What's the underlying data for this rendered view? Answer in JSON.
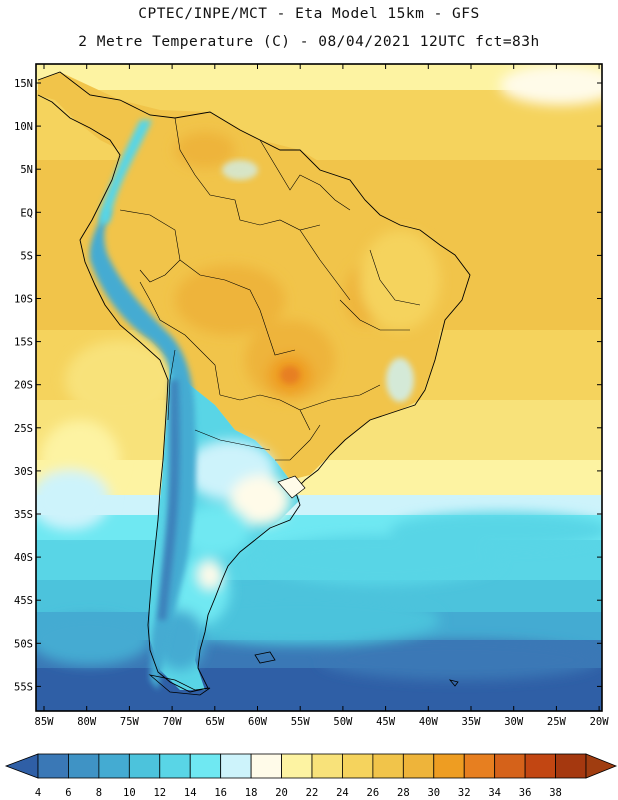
{
  "header": {
    "line1": "CPTEC/INPE/MCT -   Eta Model 15km - GFS",
    "line2": "2 Metre Temperature (C) - 08/04/2021 12UTC fct=83h"
  },
  "map": {
    "region": "South America",
    "lat_range": [
      -58,
      16.5
    ],
    "lon_range": [
      -86,
      -20
    ],
    "lat_ticks": [
      "15N",
      "10N",
      "5N",
      "EQ",
      "5S",
      "10S",
      "15S",
      "20S",
      "25S",
      "30S",
      "35S",
      "40S",
      "45S",
      "50S",
      "55S"
    ],
    "lon_ticks": [
      "85W",
      "80W",
      "75W",
      "70W",
      "65W",
      "60W",
      "55W",
      "50W",
      "45W",
      "40W",
      "35W",
      "30W",
      "25W",
      "20W"
    ]
  },
  "colorbar": {
    "labels": [
      "4",
      "6",
      "8",
      "10",
      "12",
      "14",
      "16",
      "18",
      "20",
      "22",
      "24",
      "26",
      "28",
      "30",
      "32",
      "34",
      "36",
      "38"
    ],
    "colors": [
      "#2f5fa6",
      "#3a78b6",
      "#3f93c5",
      "#44abd2",
      "#4cc3dc",
      "#59d5e6",
      "#6fe8f2",
      "#cdf3fb",
      "#fffbe9",
      "#fdf3a2",
      "#f8e27a",
      "#f5d35d",
      "#f1c44a",
      "#eeb43a",
      "#ee9d22",
      "#e77f20",
      "#d5621a",
      "#c24612",
      "#a5380f",
      "#a03d10"
    ]
  }
}
